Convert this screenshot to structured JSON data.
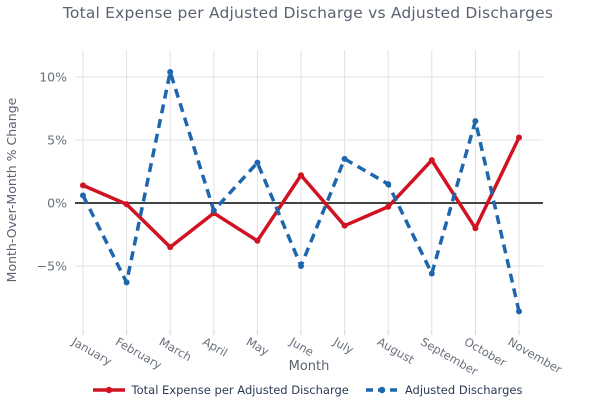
{
  "chart_data": {
    "type": "line",
    "title": "Total Expense per Adjusted Discharge vs Adjusted Discharges",
    "xlabel": "Month",
    "ylabel": "Month-Over-Month % Change",
    "categories": [
      "January",
      "February",
      "March",
      "April",
      "May",
      "June",
      "July",
      "August",
      "September",
      "October",
      "November"
    ],
    "series": [
      {
        "name": "Total Expense per Adjusted Discharge",
        "color": "#d01223",
        "style": "solid",
        "values": [
          1.4,
          -0.1,
          -3.5,
          -0.8,
          -3.0,
          2.2,
          -1.8,
          -0.3,
          3.4,
          -2.0,
          5.2
        ]
      },
      {
        "name": "Adjusted Discharges",
        "color": "#1e66ad",
        "style": "dashed",
        "values": [
          0.6,
          -6.3,
          10.4,
          -0.6,
          3.2,
          -5.0,
          3.5,
          1.5,
          -5.6,
          6.5,
          -8.6
        ]
      }
    ],
    "yticks": [
      10,
      5,
      0,
      -5
    ],
    "ytick_labels": [
      "10%",
      "5%",
      "0%",
      "−5%"
    ],
    "ylim": [
      -10.1,
      12.1
    ],
    "grid": true,
    "zeroline": true,
    "legend_position": "bottom"
  },
  "colors": {
    "gridline": "#e2e2e2",
    "zeroline": "#444444",
    "tick_text": "#69707d",
    "axis_title_text": "#5b6370",
    "title_text": "#5a6272",
    "legend_text": "#2b3a55",
    "month_tick": "#d4d4d4"
  }
}
